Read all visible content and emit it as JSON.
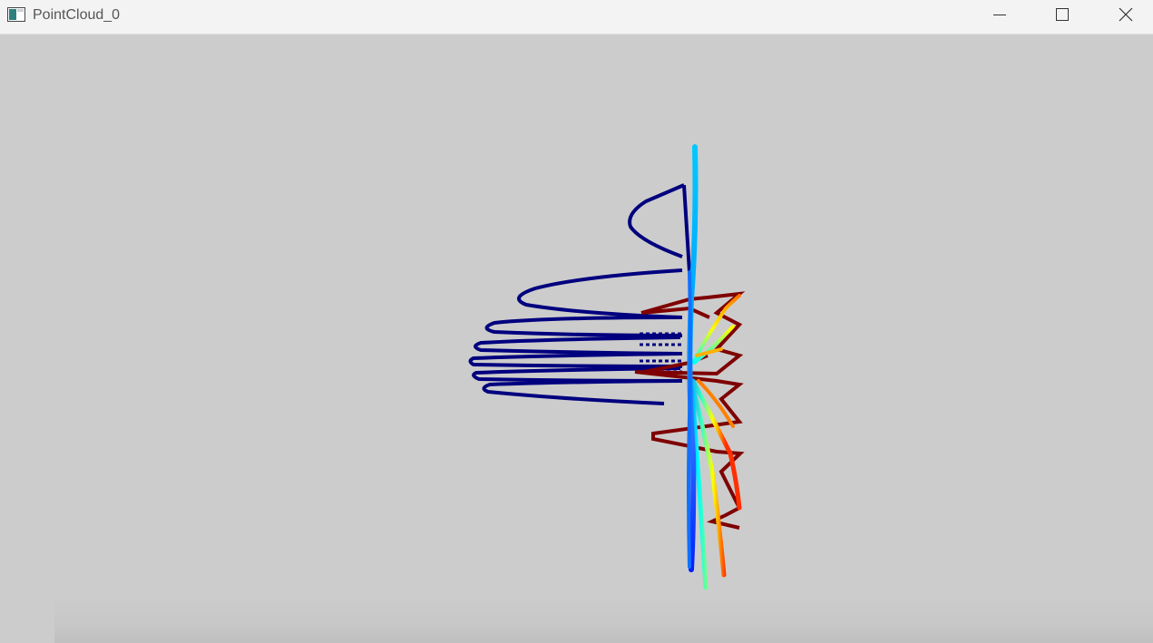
{
  "window": {
    "title": "PointCloud_0",
    "app_icon": "window-app-icon",
    "controls": {
      "minimize_icon": "minimize-icon",
      "maximize_icon": "maximize-icon",
      "close_icon": "close-icon"
    }
  },
  "viewport": {
    "background": "#cccccc",
    "colormap": "jet",
    "colors": {
      "deep_blue": "#00007f",
      "blue": "#0000ff",
      "cyan": "#00ffff",
      "green": "#7fff7f",
      "yellow": "#ffff00",
      "red": "#ff0000",
      "dark_red": "#7f0000"
    }
  }
}
